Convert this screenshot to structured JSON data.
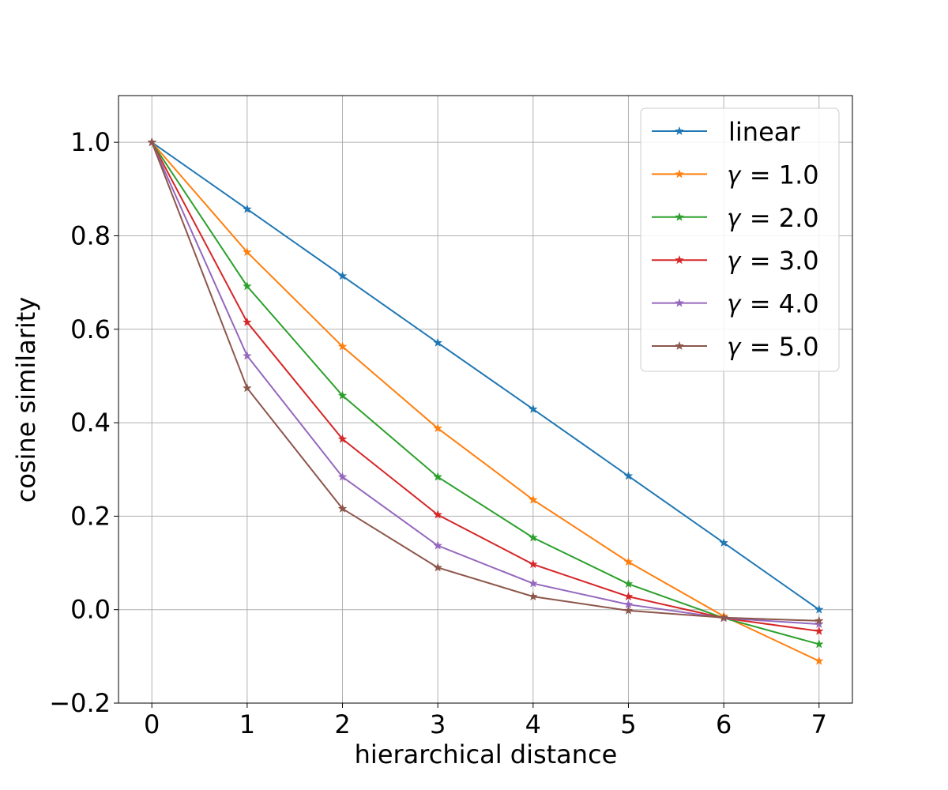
{
  "chart_data": {
    "type": "line",
    "title": "",
    "xlabel": "hierarchical distance",
    "ylabel": "cosine similarity",
    "xlim": [
      -0.35,
      7.35
    ],
    "ylim": [
      -0.2,
      1.1
    ],
    "x": [
      0,
      1,
      2,
      3,
      4,
      5,
      6,
      7
    ],
    "xticks": [
      "0",
      "1",
      "2",
      "3",
      "4",
      "5",
      "6",
      "7"
    ],
    "yticks": [
      -0.2,
      0.0,
      0.2,
      0.4,
      0.6,
      0.8,
      1.0
    ],
    "ytick_labels": [
      "−0.2",
      "0.0",
      "0.2",
      "0.4",
      "0.6",
      "0.8",
      "1.0"
    ],
    "grid": true,
    "marker": "star",
    "legend_position": "top-right",
    "series": [
      {
        "name": "linear",
        "color": "#1f77b4",
        "values": [
          1.0,
          0.857,
          0.714,
          0.571,
          0.429,
          0.286,
          0.143,
          0.0
        ]
      },
      {
        "name": "𝛾 = 1.0",
        "color": "#ff7f0e",
        "values": [
          1.0,
          0.765,
          0.563,
          0.388,
          0.235,
          0.102,
          -0.014,
          -0.11
        ]
      },
      {
        "name": "𝛾 = 2.0",
        "color": "#2ca02c",
        "values": [
          1.0,
          0.692,
          0.458,
          0.284,
          0.154,
          0.055,
          -0.018,
          -0.074
        ]
      },
      {
        "name": "𝛾 = 3.0",
        "color": "#d62728",
        "values": [
          1.0,
          0.615,
          0.365,
          0.203,
          0.097,
          0.028,
          -0.018,
          -0.046
        ]
      },
      {
        "name": "𝛾 = 4.0",
        "color": "#9467bd",
        "values": [
          1.0,
          0.543,
          0.284,
          0.137,
          0.056,
          0.011,
          -0.018,
          -0.031
        ]
      },
      {
        "name": "𝛾 = 5.0",
        "color": "#8c564b",
        "values": [
          1.0,
          0.474,
          0.216,
          0.09,
          0.028,
          -0.002,
          -0.017,
          -0.024
        ]
      }
    ]
  }
}
